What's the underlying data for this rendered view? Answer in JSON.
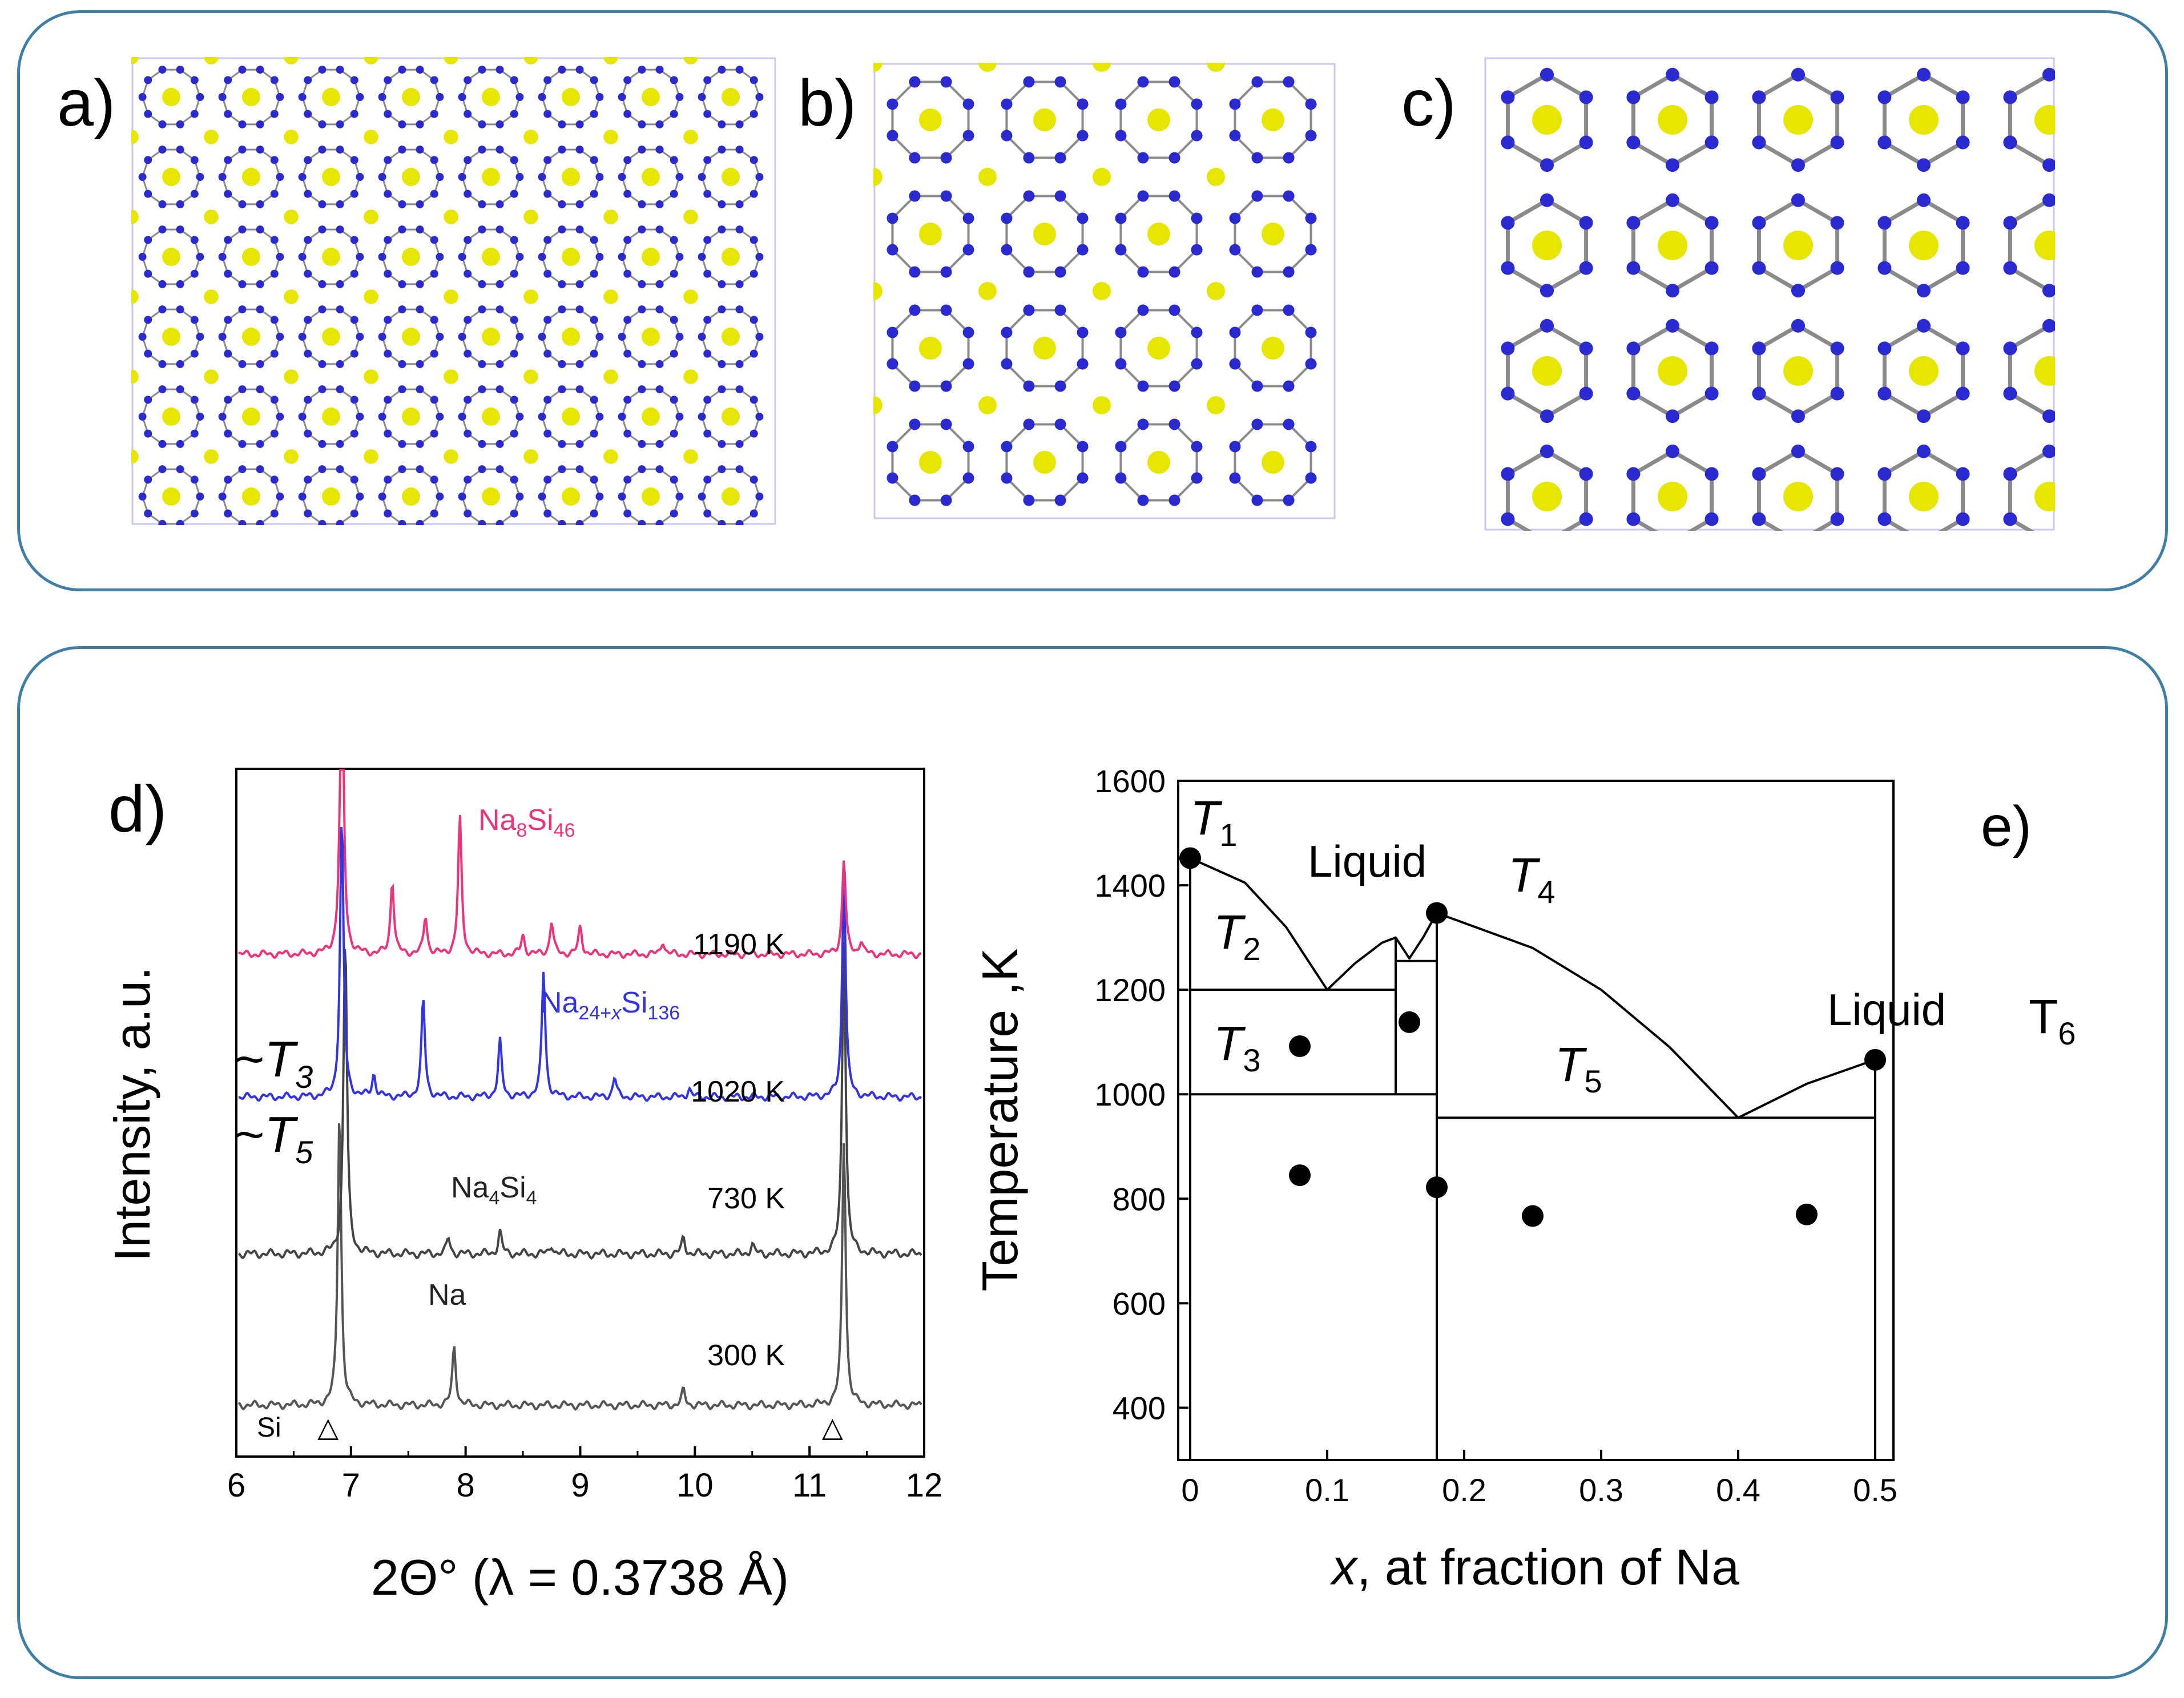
{
  "panels": {
    "a": {
      "label": "a)"
    },
    "b": {
      "label": "b)"
    },
    "c": {
      "label": "c)"
    }
  },
  "chart_data": [
    {
      "panel_label": "d)",
      "type": "line",
      "title": "",
      "xlabel": "2Θ° (λ = 0.3738 Å)",
      "ylabel": "Intensity, a.u.",
      "xlim": [
        6,
        12
      ],
      "x_ticks": [
        "6",
        "7",
        "8",
        "9",
        "10",
        "11",
        "12"
      ],
      "series": [
        {
          "name": "300 K",
          "color": "#555555",
          "temp_label": "300 K",
          "phase_label": "Na",
          "offset": 0,
          "peaks": [
            [
              6.9,
              1.0
            ],
            [
              7.9,
              0.2
            ],
            [
              9.9,
              0.05
            ],
            [
              11.3,
              0.9
            ]
          ]
        },
        {
          "name": "730 K",
          "color": "#444444",
          "temp_label": "730 K",
          "phase_label": "Na4Si4",
          "offset": 1,
          "peaks": [
            [
              6.95,
              1.0
            ],
            [
              7.85,
              0.05
            ],
            [
              8.3,
              0.07
            ],
            [
              8.75,
              0.03
            ],
            [
              9.9,
              0.05
            ],
            [
              10.5,
              0.03
            ],
            [
              11.3,
              1.0
            ]
          ]
        },
        {
          "name": "1020 K",
          "color": "#3333e0",
          "temp_label": "1020 K",
          "phase_label": "Na24+xSi136",
          "offset": 2,
          "peaks": [
            [
              6.92,
              1.0
            ],
            [
              7.2,
              0.08
            ],
            [
              7.63,
              0.35
            ],
            [
              8.3,
              0.2
            ],
            [
              8.68,
              0.45
            ],
            [
              9.3,
              0.07
            ],
            [
              9.95,
              0.03
            ],
            [
              11.3,
              0.8
            ]
          ]
        },
        {
          "name": "1190 K",
          "color": "#e8357c",
          "temp_label": "1190 K",
          "phase_label": "Na8Si46",
          "offset": 3,
          "peaks": [
            [
              6.92,
              1.2
            ],
            [
              7.36,
              0.27
            ],
            [
              7.65,
              0.14
            ],
            [
              7.95,
              0.5
            ],
            [
              8.5,
              0.07
            ],
            [
              8.75,
              0.12
            ],
            [
              9.0,
              0.1
            ],
            [
              9.72,
              0.05
            ],
            [
              11.3,
              0.35
            ],
            [
              11.45,
              0.05
            ]
          ]
        }
      ],
      "annotations": {
        "si_label": "Si",
        "markers": [
          "△",
          "△"
        ],
        "marker_positions": [
          6.8,
          11.2
        ],
        "t3_prefix": "~",
        "t3_italic": "T",
        "t3_sub": "3",
        "t5_prefix": "~",
        "t5_italic": "T",
        "t5_sub": "5"
      },
      "phase_parts": {
        "na8si46": {
          "a": "Na",
          "b": "8",
          "c": "Si",
          "d": "46"
        },
        "na24": {
          "a": "Na",
          "b": "24+",
          "c": "x",
          "d": "Si",
          "e": "136"
        },
        "na4si4": {
          "a": "Na",
          "b": "4",
          "c": "Si",
          "d": "4"
        },
        "na": "Na"
      }
    },
    {
      "panel_label": "e)",
      "type": "scatter",
      "title": "",
      "xlabel_italic": "x",
      "xlabel": ", at fraction of Na",
      "ylabel": "Temperature ,K",
      "xlim": [
        0,
        0.5
      ],
      "ylim": [
        300,
        1600
      ],
      "x_ticks": [
        "0",
        "0.1",
        "0.2",
        "0.3",
        "0.4",
        "0.5"
      ],
      "x_tick_values": [
        0,
        0.1,
        0.2,
        0.3,
        0.4,
        0.5
      ],
      "y_ticks": [
        "400",
        "600",
        "800",
        "1000",
        "1200",
        "1400",
        "1600"
      ],
      "y_tick_values": [
        400,
        600,
        800,
        1000,
        1200,
        1400,
        1600
      ],
      "points": [
        [
          0,
          1452
        ],
        [
          0.08,
          1092
        ],
        [
          0.08,
          845
        ],
        [
          0.16,
          1138
        ],
        [
          0.18,
          1347
        ],
        [
          0.18,
          822
        ],
        [
          0.25,
          767
        ],
        [
          0.45,
          770
        ],
        [
          0.5,
          1066
        ]
      ],
      "liquidus": [
        [
          [
            0,
            1452
          ],
          [
            0.04,
            1405
          ],
          [
            0.07,
            1320
          ],
          [
            0.1,
            1200
          ],
          [
            0.12,
            1250
          ],
          [
            0.14,
            1290
          ],
          [
            0.15,
            1300
          ],
          [
            0.16,
            1260
          ],
          [
            0.17,
            1300
          ],
          [
            0.18,
            1347
          ],
          [
            0.25,
            1280
          ],
          [
            0.3,
            1200
          ],
          [
            0.35,
            1090
          ],
          [
            0.4,
            955
          ],
          [
            0.45,
            1020
          ],
          [
            0.5,
            1066
          ]
        ]
      ],
      "phase_lines": [
        {
          "x": [
            0,
            0.15
          ],
          "y": [
            1200,
            1200
          ]
        },
        {
          "x": [
            0,
            0.18
          ],
          "y": [
            1000,
            1000
          ]
        },
        {
          "x": [
            0.15,
            0.18
          ],
          "y": [
            1255,
            1255
          ]
        },
        {
          "x": [
            0.18,
            0.5
          ],
          "y": [
            955,
            955
          ]
        },
        {
          "x": [
            0.15,
            0.15
          ],
          "y": [
            1000,
            1300
          ]
        },
        {
          "x": [
            0.18,
            0.18
          ],
          "y": [
            300,
            1347
          ]
        },
        {
          "x": [
            0,
            0
          ],
          "y": [
            300,
            1452
          ]
        },
        {
          "x": [
            0.5,
            0.5
          ],
          "y": [
            300,
            1066
          ]
        }
      ],
      "region_labels": {
        "liquid1": "Liquid",
        "liquid2": "Liquid",
        "T1": {
          "t": "T",
          "s": "1"
        },
        "T2": {
          "t": "T",
          "s": "2"
        },
        "T3": {
          "t": "T",
          "s": "3"
        },
        "T4": {
          "t": "T",
          "s": "4"
        },
        "T5": {
          "t": "T",
          "s": "5"
        },
        "T6": {
          "t": "T",
          "s": "6"
        }
      }
    }
  ]
}
